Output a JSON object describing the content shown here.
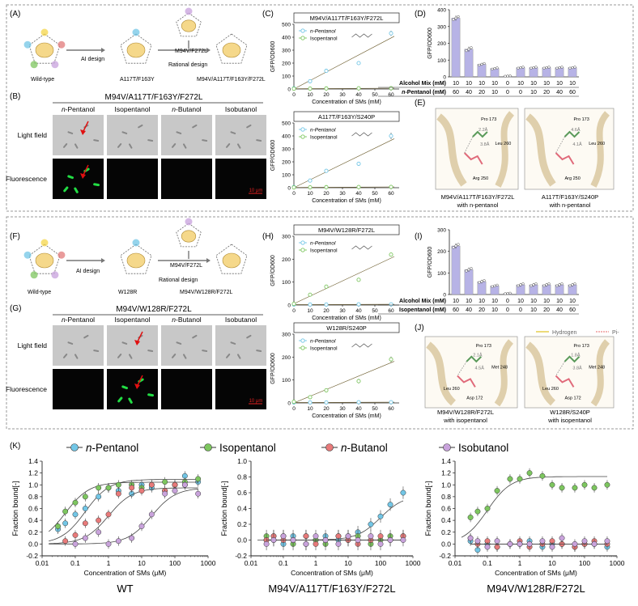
{
  "colors": {
    "pentanol": "#72c6e6",
    "isopentanol": "#7dc65f",
    "butanol": "#e87a7a",
    "isobutanol": "#c9a3dc",
    "bar": "#b7b3e6",
    "panel_border": "#999999",
    "trend_line": "#6a5a2a",
    "fluor_cell": "#22dd44"
  },
  "panels": {
    "A": {
      "label": "(A)",
      "wt": "Wild-type",
      "ai": "AI design",
      "m1": "A117T/F163Y",
      "m2": "M94V/F272L",
      "rational": "Rational design",
      "final": "M94V/A117T/F163Y/F272L"
    },
    "B": {
      "label": "(B)",
      "title": "M94V/A117T/F163Y/F272L",
      "cols": [
        "n-Pentanol",
        "Isopentanol",
        "n-Butanol",
        "Isobutanol"
      ],
      "rows": [
        "Light field",
        "Fluorescence"
      ],
      "scale": "10 μm"
    },
    "C": {
      "label": "(C)"
    },
    "D": {
      "label": "(D)",
      "row1": "Alcohol Mix (mM)",
      "row2": "n-Pentanol (mM)",
      "r1": [
        "10",
        "10",
        "10",
        "10",
        "0",
        "10",
        "10",
        "10",
        "10",
        "10"
      ],
      "r2": [
        "60",
        "40",
        "20",
        "10",
        "0",
        "0",
        "10",
        "20",
        "40",
        "60"
      ]
    },
    "E": {
      "label": "(E)",
      "cap1a": "M94V/A117T/F163Y/F272L",
      "cap1b": "with n-pentanol",
      "cap2a": "A117T/F163Y/S240P",
      "cap2b": "with n-pentanol",
      "res": [
        "Pro 173",
        "Leu 260",
        "Arg 250"
      ],
      "dist1": [
        "2.2Å",
        "3.8Å"
      ],
      "dist2": [
        "4.6Å",
        "4.1Å"
      ]
    },
    "F": {
      "label": "(F)",
      "wt": "Wild-type",
      "ai": "AI design",
      "m1": "W128R",
      "m2": "M94V/F272L",
      "rational": "Rational design",
      "final": "M94V/W128R/F272L"
    },
    "G": {
      "label": "(G)",
      "title": "M94V/W128R/F272L",
      "cols": [
        "n-Pentanol",
        "Isopentanol",
        "n-Butanol",
        "Isobutanol"
      ],
      "rows": [
        "Light field",
        "Fluorescence"
      ],
      "scale": "10 μm"
    },
    "H": {
      "label": "(H)"
    },
    "I": {
      "label": "(I)",
      "row1": "Alcohol Mix (mM)",
      "row2": "Isopentanol (mM)",
      "r1": [
        "10",
        "10",
        "10",
        "10",
        "0",
        "10",
        "10",
        "10",
        "10",
        "10"
      ],
      "r2": [
        "60",
        "40",
        "20",
        "10",
        "0",
        "0",
        "10",
        "20",
        "40",
        "60"
      ]
    },
    "J": {
      "label": "(J)",
      "legend_h": "Hydrogen",
      "legend_pi": "Pi-",
      "cap1a": "M94V/W128R/F272L",
      "cap1b": "with isopentanol",
      "cap2a": "W128R/S240P",
      "cap2b": "with isopentanol",
      "res1": [
        "Pro 173",
        "Met 248",
        "Asp 172",
        "Leu 260"
      ],
      "res2": [
        "Pro 173",
        "Met 248",
        "Asp 172",
        "Leu 260"
      ],
      "dist1": [
        "2.1Å",
        "4.5Å"
      ],
      "dist2": [
        "1.8Å",
        "3.8Å"
      ]
    },
    "K": {
      "label": "(K)",
      "legend": [
        "n-Pentanol",
        "Isopentanol",
        "n-Butanol",
        "Isobutanol"
      ]
    }
  },
  "chart_data": [
    {
      "id": "C1",
      "type": "scatter",
      "title": "M94V/A117T/F163Y/F272L",
      "xlabel": "Concentration of SMs  (mM)",
      "ylabel": "GFP/OD600",
      "xlim": [
        0,
        65
      ],
      "ylim": [
        0,
        500
      ],
      "xticks": [
        0,
        10,
        20,
        30,
        40,
        50,
        60
      ],
      "yticks": [
        0,
        100,
        200,
        300,
        400,
        500
      ],
      "legend": [
        "n-Pentanol",
        "Isopentanol"
      ],
      "series": [
        {
          "name": "n-Pentanol",
          "x": [
            0,
            10,
            20,
            40,
            60
          ],
          "y": [
            5,
            60,
            140,
            200,
            430
          ],
          "err": [
            5,
            8,
            10,
            12,
            20
          ]
        },
        {
          "name": "Isopentanol",
          "x": [
            0,
            10,
            20,
            40,
            60
          ],
          "y": [
            2,
            3,
            4,
            5,
            6
          ],
          "err": [
            2,
            2,
            2,
            2,
            2
          ]
        }
      ]
    },
    {
      "id": "C2",
      "type": "scatter",
      "title": "A117T/F163Y/S240P",
      "xlabel": "Concentration of SMs  (mM)",
      "ylabel": "GFP/OD600",
      "xlim": [
        0,
        65
      ],
      "ylim": [
        0,
        500
      ],
      "xticks": [
        0,
        10,
        20,
        30,
        40,
        50,
        60
      ],
      "yticks": [
        0,
        100,
        200,
        300,
        400,
        500
      ],
      "legend": [
        "n-Pentanol",
        "Isopentanol"
      ],
      "series": [
        {
          "name": "n-Pentanol",
          "x": [
            0,
            10,
            20,
            40,
            60
          ],
          "y": [
            5,
            55,
            130,
            185,
            400
          ],
          "err": [
            5,
            8,
            12,
            15,
            25
          ]
        },
        {
          "name": "Isopentanol",
          "x": [
            0,
            10,
            20,
            40,
            60
          ],
          "y": [
            2,
            3,
            4,
            5,
            6
          ],
          "err": [
            2,
            2,
            2,
            2,
            2
          ]
        }
      ]
    },
    {
      "id": "D",
      "type": "bar",
      "ylabel": "GFP/OD600",
      "ylim": [
        0,
        400
      ],
      "yticks": [
        0,
        100,
        200,
        300,
        400
      ],
      "values": [
        350,
        165,
        75,
        50,
        5,
        55,
        55,
        55,
        55,
        55
      ],
      "err": [
        15,
        15,
        8,
        6,
        2,
        5,
        5,
        5,
        5,
        5
      ]
    },
    {
      "id": "H1",
      "type": "scatter",
      "title": "M94V/W128R/F272L",
      "xlabel": "Concentration of SMs  (mM)",
      "ylabel": "GFP/OD600",
      "xlim": [
        0,
        65
      ],
      "ylim": [
        0,
        300
      ],
      "xticks": [
        0,
        10,
        20,
        30,
        40,
        50,
        60
      ],
      "yticks": [
        0,
        100,
        200,
        300
      ],
      "legend": [
        "n-Pentanol",
        "Isopentanol"
      ],
      "series": [
        {
          "name": "n-Pentanol",
          "x": [
            0,
            10,
            20,
            40,
            60
          ],
          "y": [
            2,
            2,
            2,
            3,
            3
          ],
          "err": [
            2,
            2,
            2,
            2,
            2
          ]
        },
        {
          "name": "Isopentanol",
          "x": [
            0,
            10,
            20,
            40,
            60
          ],
          "y": [
            5,
            45,
            80,
            110,
            220
          ],
          "err": [
            3,
            5,
            6,
            8,
            8
          ]
        }
      ]
    },
    {
      "id": "H2",
      "type": "scatter",
      "title": "W128R/S240P",
      "xlabel": "Concentration of SMs  (mM)",
      "ylabel": "GFP/OD600",
      "xlim": [
        0,
        65
      ],
      "ylim": [
        0,
        300
      ],
      "xticks": [
        0,
        10,
        20,
        30,
        40,
        50,
        60
      ],
      "yticks": [
        0,
        100,
        200,
        300
      ],
      "legend": [
        "n-Pentanol",
        "Isopentanol"
      ],
      "series": [
        {
          "name": "n-Pentanol",
          "x": [
            0,
            10,
            20,
            40,
            60
          ],
          "y": [
            2,
            2,
            2,
            3,
            3
          ],
          "err": [
            2,
            2,
            2,
            2,
            2
          ]
        },
        {
          "name": "Isopentanol",
          "x": [
            0,
            10,
            20,
            40,
            60
          ],
          "y": [
            5,
            25,
            55,
            95,
            190
          ],
          "err": [
            3,
            4,
            5,
            10,
            12
          ]
        }
      ]
    },
    {
      "id": "I",
      "type": "bar",
      "ylabel": "GFP/OD600",
      "ylim": [
        0,
        300
      ],
      "yticks": [
        0,
        100,
        200,
        300
      ],
      "values": [
        225,
        115,
        60,
        40,
        5,
        45,
        45,
        45,
        45,
        45
      ],
      "err": [
        12,
        10,
        8,
        6,
        2,
        8,
        8,
        8,
        8,
        8
      ]
    },
    {
      "id": "K1",
      "type": "scatter",
      "xlabel": "Concentration of SMs (μM)",
      "ylabel": "Fraction bound[-]",
      "subtitle": "WT",
      "xscale": "log",
      "xlim": [
        0.01,
        1000
      ],
      "ylim": [
        -0.2,
        1.4
      ],
      "yticks": [
        -0.2,
        0,
        0.2,
        0.4,
        0.6,
        0.8,
        1.0,
        1.2,
        1.4
      ],
      "xticklabels": [
        "0.01",
        "0.1",
        "1",
        "10",
        "100",
        "1000"
      ],
      "series": [
        {
          "name": "n-Pentanol",
          "x": [
            0.03,
            0.05,
            0.1,
            0.2,
            0.5,
            1,
            2,
            5,
            10,
            20,
            50,
            100,
            200,
            500
          ],
          "y": [
            0.25,
            0.35,
            0.5,
            0.6,
            0.8,
            0.95,
            0.9,
            0.85,
            1.0,
            0.95,
            0.9,
            1.0,
            1.15,
            1.05
          ]
        },
        {
          "name": "Isopentanol",
          "x": [
            0.03,
            0.05,
            0.1,
            0.2,
            0.5,
            1,
            2,
            5,
            10,
            20,
            50,
            100,
            200,
            500
          ],
          "y": [
            0.3,
            0.55,
            0.7,
            0.8,
            0.95,
            0.95,
            1.0,
            1.0,
            0.95,
            1.0,
            1.05,
            1.0,
            1.05,
            1.1
          ]
        },
        {
          "name": "n-Butanol",
          "x": [
            0.05,
            0.1,
            0.2,
            0.5,
            1,
            2,
            5,
            10,
            20,
            50,
            100,
            200
          ],
          "y": [
            0.05,
            0.15,
            0.35,
            0.4,
            0.5,
            0.85,
            0.95,
            0.9,
            1.0,
            0.9,
            1.0,
            1.0
          ]
        },
        {
          "name": "Isobutanol",
          "x": [
            0.1,
            0.2,
            0.5,
            1,
            2,
            5,
            10,
            20,
            50,
            100,
            200,
            500
          ],
          "y": [
            0.0,
            0.1,
            0.2,
            0.0,
            0.05,
            0.1,
            0.3,
            0.5,
            0.85,
            0.9,
            1.0,
            0.85
          ]
        }
      ]
    },
    {
      "id": "K2",
      "type": "scatter",
      "xlabel": "Concentration of SMs (μM)",
      "ylabel": "Fraction bound[-]",
      "subtitle": "M94V/A117T/F163Y/F272L",
      "xscale": "log",
      "xlim": [
        0.01,
        1000
      ],
      "ylim": [
        -0.2,
        1.0
      ],
      "yticks": [
        -0.2,
        0,
        0.2,
        0.4,
        0.6,
        0.8,
        1.0
      ],
      "xticklabels": [
        "0.01",
        "0.1",
        "1",
        "10",
        "100",
        "1000"
      ],
      "series": [
        {
          "name": "n-Pentanol",
          "x": [
            0.03,
            0.05,
            0.1,
            0.2,
            0.5,
            1,
            2,
            5,
            10,
            20,
            50,
            100,
            200,
            500
          ],
          "y": [
            0.0,
            0.05,
            -0.05,
            0.05,
            -0.05,
            0.0,
            0.05,
            0.0,
            0.05,
            0.1,
            0.2,
            0.3,
            0.45,
            0.6
          ]
        },
        {
          "name": "Isopentanol",
          "x": [
            0.03,
            0.05,
            0.1,
            0.2,
            0.5,
            1,
            2,
            5,
            10,
            20,
            50,
            100,
            200,
            500
          ],
          "y": [
            0.05,
            0.0,
            0.05,
            -0.05,
            0.05,
            0.0,
            -0.05,
            0.05,
            0.0,
            0.05,
            -0.05,
            0.0,
            0.05,
            0.05
          ]
        },
        {
          "name": "n-Butanol",
          "x": [
            0.03,
            0.05,
            0.1,
            0.2,
            0.5,
            1,
            2,
            5,
            10,
            20,
            50,
            100,
            200,
            500
          ],
          "y": [
            0.0,
            0.05,
            0.0,
            0.0,
            0.05,
            -0.05,
            0.0,
            0.05,
            0.0,
            -0.05,
            0.0,
            0.05,
            0.0,
            0.05
          ]
        },
        {
          "name": "Isobutanol",
          "x": [
            0.03,
            0.05,
            0.1,
            0.2,
            0.5,
            1,
            2,
            5,
            10,
            20,
            50,
            100,
            200,
            500
          ],
          "y": [
            -0.05,
            0.0,
            0.05,
            0.0,
            -0.05,
            0.05,
            0.0,
            -0.05,
            0.05,
            0.0,
            0.05,
            -0.05,
            0.0,
            0.0
          ]
        }
      ]
    },
    {
      "id": "K3",
      "type": "scatter",
      "xlabel": "Concentration of SMs (μM)",
      "ylabel": "Fraction bound[-]",
      "subtitle": "M94V/W128R/F272L",
      "xscale": "log",
      "xlim": [
        0.01,
        1000
      ],
      "ylim": [
        -0.2,
        1.4
      ],
      "yticks": [
        -0.2,
        0,
        0.2,
        0.4,
        0.6,
        0.8,
        1.0,
        1.2,
        1.4
      ],
      "xticklabels": [
        "0.01",
        "0.1",
        "1",
        "10",
        "100",
        "1000"
      ],
      "series": [
        {
          "name": "Isopentanol",
          "x": [
            0.03,
            0.05,
            0.1,
            0.2,
            0.5,
            1,
            2,
            5,
            10,
            20,
            50,
            100,
            200,
            500
          ],
          "y": [
            0.45,
            0.55,
            0.6,
            0.9,
            1.1,
            1.1,
            1.2,
            1.15,
            1.0,
            0.95,
            0.95,
            1.0,
            0.95,
            1.0
          ]
        },
        {
          "name": "n-Pentanol",
          "x": [
            0.03,
            0.05,
            0.1,
            0.2,
            0.5,
            1,
            2,
            5,
            10,
            20,
            50,
            100,
            200,
            500
          ],
          "y": [
            0.05,
            -0.1,
            0.0,
            -0.05,
            0.0,
            0.0,
            0.05,
            -0.05,
            0.0,
            0.0,
            -0.05,
            0.0,
            0.0,
            -0.05
          ]
        },
        {
          "name": "n-Butanol",
          "x": [
            0.03,
            0.05,
            0.1,
            0.2,
            0.5,
            1,
            2,
            5,
            10,
            20,
            50,
            100,
            200,
            500
          ],
          "y": [
            0.1,
            0.0,
            0.05,
            -0.05,
            0.0,
            0.05,
            -0.05,
            0.0,
            0.05,
            0.0,
            -0.05,
            0.0,
            0.05,
            0.0
          ]
        },
        {
          "name": "Isobutanol",
          "x": [
            0.03,
            0.05,
            0.1,
            0.2,
            0.5,
            1,
            2,
            5,
            10,
            20,
            50,
            100,
            200,
            500
          ],
          "y": [
            0.1,
            0.05,
            -0.05,
            0.05,
            0.0,
            0.0,
            0.0,
            0.05,
            -0.05,
            0.1,
            0.0,
            0.05,
            0.0,
            0.05
          ]
        }
      ]
    }
  ]
}
